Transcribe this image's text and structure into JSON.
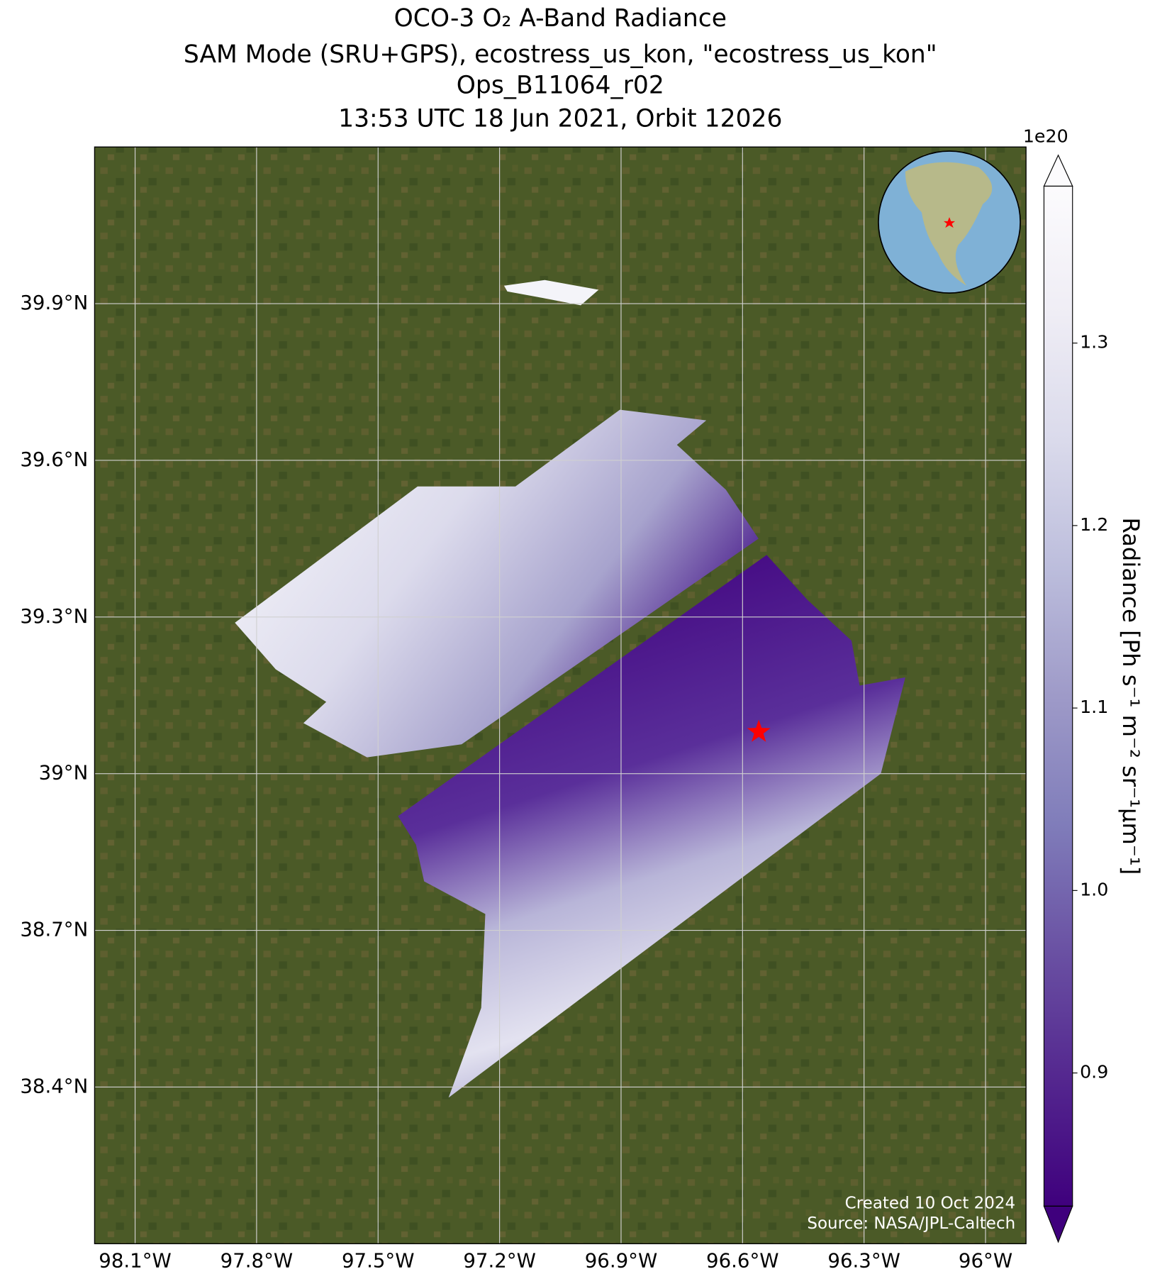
{
  "chart_data": {
    "type": "map",
    "title": [
      "OCO-3 O₂ A-Band Radiance",
      "SAM Mode (SRU+GPS), ecostress_us_kon, \"ecostress_us_kon\"",
      "Ops_B11064_r02",
      "13:53 UTC 18 Jun 2021, Orbit 12026"
    ],
    "xlim": [
      -98.2,
      -95.9
    ],
    "ylim": [
      38.1,
      40.2
    ],
    "xticks": [
      {
        "value": -98.1,
        "label": "98.1°W"
      },
      {
        "value": -97.8,
        "label": "97.8°W"
      },
      {
        "value": -97.5,
        "label": "97.5°W"
      },
      {
        "value": -97.2,
        "label": "97.2°W"
      },
      {
        "value": -96.9,
        "label": "96.9°W"
      },
      {
        "value": -96.6,
        "label": "96.6°W"
      },
      {
        "value": -96.3,
        "label": "96.3°W"
      },
      {
        "value": -96.0,
        "label": "96°W"
      }
    ],
    "yticks": [
      {
        "value": 38.4,
        "label": "38.4°N"
      },
      {
        "value": 38.7,
        "label": "38.7°N"
      },
      {
        "value": 39.0,
        "label": "39°N"
      },
      {
        "value": 39.3,
        "label": "39.3°N"
      },
      {
        "value": 39.6,
        "label": "39.6°N"
      },
      {
        "value": 39.9,
        "label": "39.9°N"
      }
    ],
    "grid": true,
    "marker": {
      "lon": -96.56,
      "lat": 39.08,
      "color": "#ff0000"
    },
    "colorbar": {
      "label": "Radiance [Ph s⁻¹ m⁻² sr⁻¹μm⁻¹]",
      "offset_label": "1e20",
      "cmap": "Purples",
      "clim": [
        0.827,
        1.386
      ],
      "ticks": [
        0.9,
        {
          "value": 1.0,
          "label": "1.0"
        },
        1.1,
        1.2,
        1.3
      ]
    },
    "footnotes": [
      "Created 10 Oct 2024",
      "Source: NASA/JPL-Caltech"
    ]
  }
}
